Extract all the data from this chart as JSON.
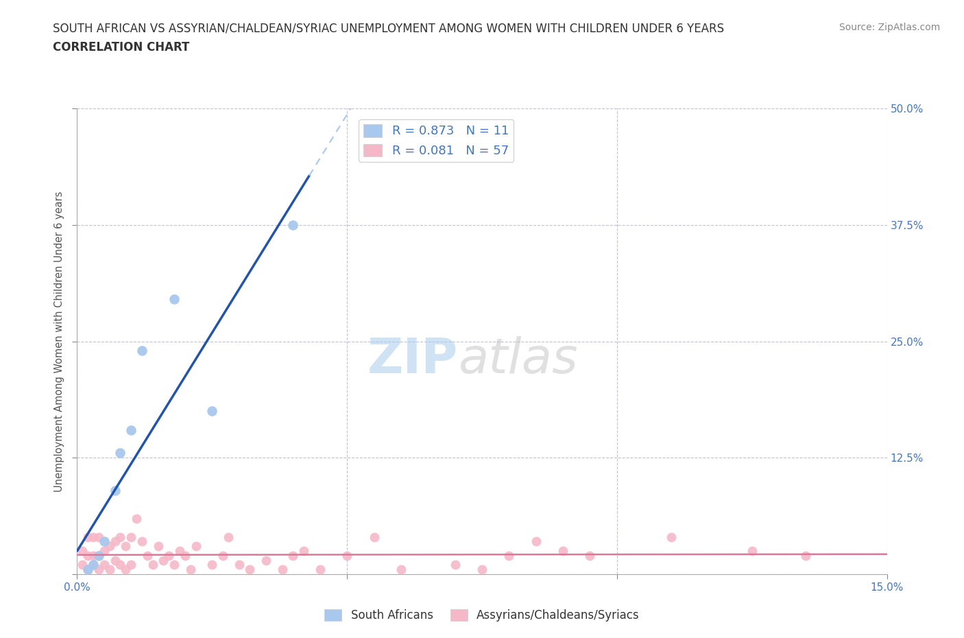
{
  "title_line1": "SOUTH AFRICAN VS ASSYRIAN/CHALDEAN/SYRIAC UNEMPLOYMENT AMONG WOMEN WITH CHILDREN UNDER 6 YEARS",
  "title_line2": "CORRELATION CHART",
  "source": "Source: ZipAtlas.com",
  "ylabel": "Unemployment Among Women with Children Under 6 years",
  "xlim": [
    0,
    0.15
  ],
  "ylim": [
    0,
    0.5
  ],
  "xticks": [
    0.0,
    0.05,
    0.1,
    0.15
  ],
  "yticks": [
    0.0,
    0.125,
    0.25,
    0.375,
    0.5
  ],
  "sa_R": 0.873,
  "sa_N": 11,
  "ac_R": 0.081,
  "ac_N": 57,
  "sa_color": "#a8c8ee",
  "ac_color": "#f5b8c8",
  "sa_line_color": "#2255aa",
  "ac_line_color": "#dd7799",
  "sa_scatter_x": [
    0.002,
    0.003,
    0.004,
    0.005,
    0.007,
    0.008,
    0.01,
    0.012,
    0.018,
    0.025,
    0.04
  ],
  "sa_scatter_y": [
    0.005,
    0.01,
    0.02,
    0.035,
    0.09,
    0.13,
    0.155,
    0.24,
    0.295,
    0.175,
    0.375
  ],
  "ac_scatter_x": [
    0.001,
    0.001,
    0.002,
    0.002,
    0.002,
    0.003,
    0.003,
    0.003,
    0.004,
    0.004,
    0.004,
    0.005,
    0.005,
    0.006,
    0.006,
    0.007,
    0.007,
    0.008,
    0.008,
    0.009,
    0.009,
    0.01,
    0.01,
    0.011,
    0.012,
    0.013,
    0.014,
    0.015,
    0.016,
    0.017,
    0.018,
    0.019,
    0.02,
    0.021,
    0.022,
    0.025,
    0.027,
    0.028,
    0.03,
    0.032,
    0.035,
    0.038,
    0.04,
    0.042,
    0.045,
    0.05,
    0.055,
    0.06,
    0.07,
    0.075,
    0.08,
    0.085,
    0.09,
    0.095,
    0.11,
    0.125,
    0.135
  ],
  "ac_scatter_y": [
    0.01,
    0.025,
    0.005,
    0.02,
    0.04,
    0.01,
    0.02,
    0.04,
    0.005,
    0.02,
    0.04,
    0.01,
    0.025,
    0.005,
    0.03,
    0.015,
    0.035,
    0.01,
    0.04,
    0.005,
    0.03,
    0.01,
    0.04,
    0.06,
    0.035,
    0.02,
    0.01,
    0.03,
    0.015,
    0.02,
    0.01,
    0.025,
    0.02,
    0.005,
    0.03,
    0.01,
    0.02,
    0.04,
    0.01,
    0.005,
    0.015,
    0.005,
    0.02,
    0.025,
    0.005,
    0.02,
    0.04,
    0.005,
    0.01,
    0.005,
    0.02,
    0.035,
    0.025,
    0.02,
    0.04,
    0.025,
    0.02
  ],
  "watermark_zip": "ZIP",
  "watermark_atlas": "atlas",
  "background_color": "#ffffff",
  "grid_color": "#bbbbcc",
  "title_color": "#333333",
  "axis_label_color": "#4477bb",
  "legend_sa_label": "South Africans",
  "legend_ac_label": "Assyrians/Chaldeans/Syriacs",
  "sa_line_x_solid_end": 0.043,
  "sa_line_x_dash_start": 0.043
}
